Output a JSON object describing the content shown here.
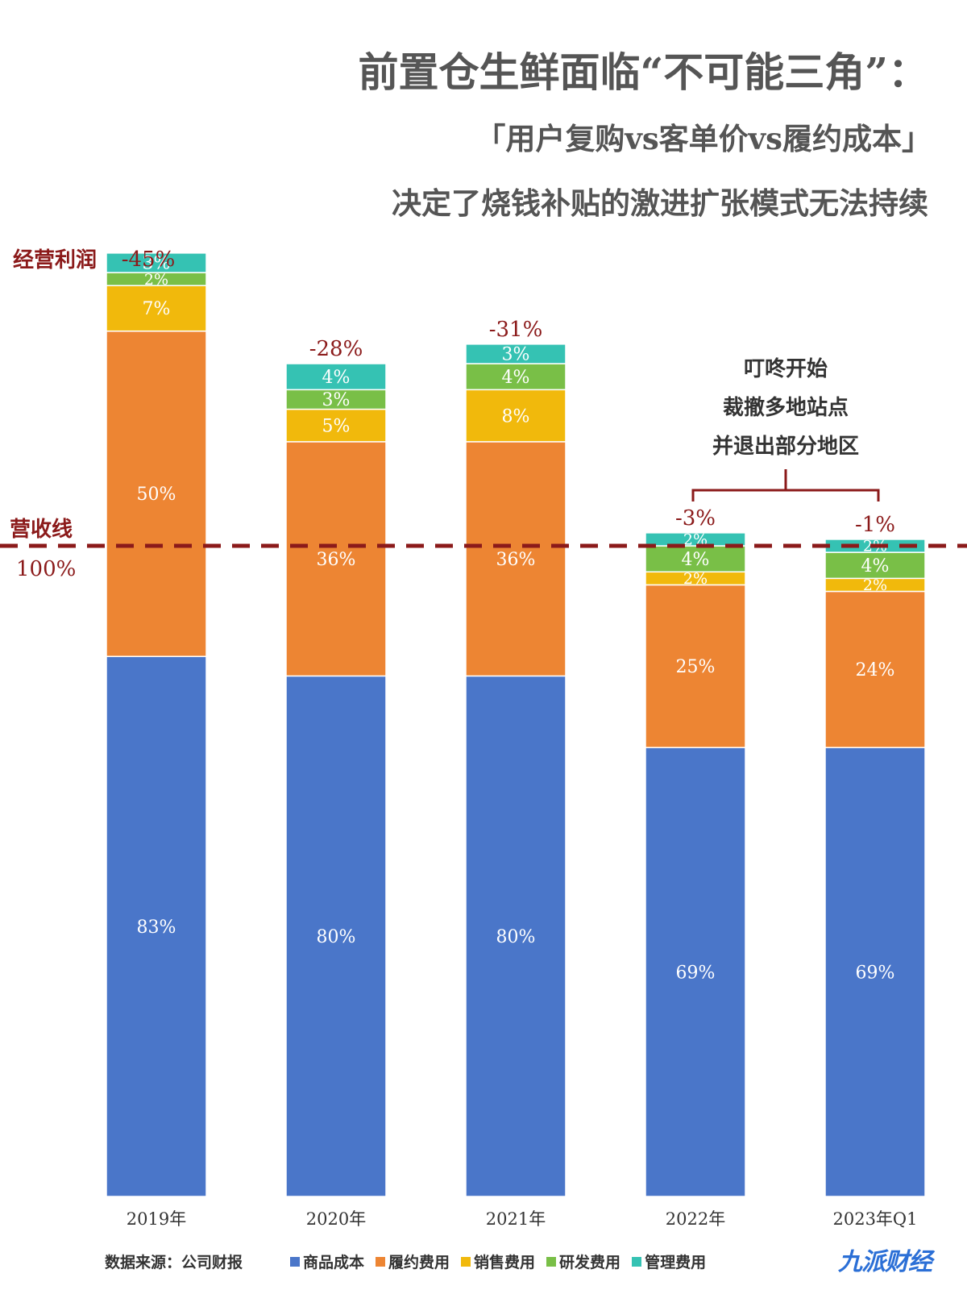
{
  "title": {
    "line1": "前置仓生鲜面临“不可能三角”：",
    "line2": "「用户复购vs客单价vs履约成本」",
    "line3": "决定了烧钱补贴的激进扩张模式无法持续"
  },
  "chart_data": {
    "type": "bar",
    "stacked": true,
    "categories": [
      "2019年",
      "2020年",
      "2021年",
      "2022年",
      "2023年Q1"
    ],
    "series": [
      {
        "name": "商品成本",
        "color": "#4a76c9",
        "values": [
          83,
          80,
          80,
          69,
          69
        ]
      },
      {
        "name": "履约费用",
        "color": "#ed8533",
        "values": [
          50,
          36,
          36,
          25,
          24
        ]
      },
      {
        "name": "销售费用",
        "color": "#f1b90c",
        "values": [
          7,
          5,
          8,
          2,
          2
        ]
      },
      {
        "name": "研发费用",
        "color": "#79bf47",
        "values": [
          2,
          3,
          4,
          4,
          4
        ]
      },
      {
        "name": "管理费用",
        "color": "#35c2b3",
        "values": [
          3,
          4,
          3,
          2,
          2
        ]
      }
    ],
    "operating_profit": {
      "label": "经营利润",
      "values": [
        "-45%",
        "-28%",
        "-31%",
        "-3%",
        "-1%"
      ]
    },
    "revenue_line": {
      "label": "营收线",
      "value_label": "100%",
      "value": 100
    },
    "annotation": {
      "lines": [
        "叮咚开始",
        "裁撤多地站点",
        "并退出部分地区"
      ],
      "spans": [
        "2022年",
        "2023年Q1"
      ]
    },
    "colors": {
      "accent": "#8b1a1a",
      "label_text": "#ffffff",
      "title_text": "#555555"
    }
  },
  "footer": {
    "source": "数据来源：公司财报",
    "brand": "九派财经"
  }
}
